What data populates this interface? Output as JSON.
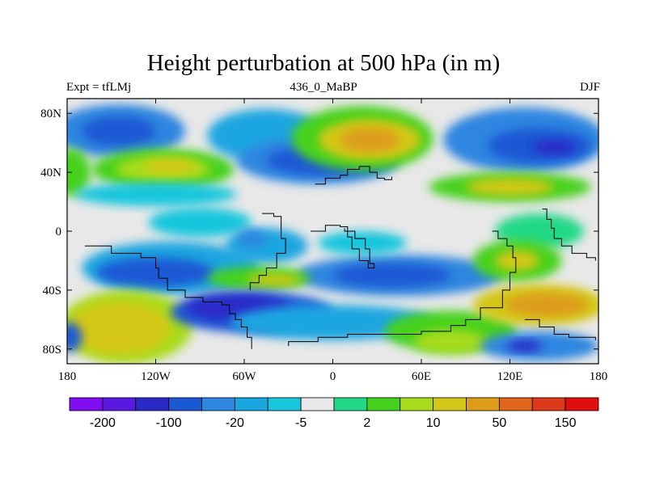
{
  "title": "Height perturbation at 500 hPa (in m)",
  "subtitle_left": "Expt = tfLMj",
  "subtitle_center": "436_0_MaBP",
  "subtitle_right": "DJF",
  "axes": {
    "lon_ticks": [
      {
        "value": -180,
        "label": "180"
      },
      {
        "value": -120,
        "label": "120W"
      },
      {
        "value": -60,
        "label": "60W"
      },
      {
        "value": 0,
        "label": "0"
      },
      {
        "value": 60,
        "label": "60E"
      },
      {
        "value": 120,
        "label": "120E"
      },
      {
        "value": 180,
        "label": "180"
      }
    ],
    "lat_ticks": [
      {
        "value": 80,
        "label": "80N"
      },
      {
        "value": 40,
        "label": "40N"
      },
      {
        "value": 0,
        "label": "0"
      },
      {
        "value": -40,
        "label": "40S"
      },
      {
        "value": -80,
        "label": "80S"
      }
    ],
    "lon_range": [
      -180,
      180
    ],
    "lat_range": [
      -90,
      90
    ]
  },
  "colorbar": {
    "colors": [
      "#7f0ff0",
      "#5a19e0",
      "#2a2ac8",
      "#1b58d4",
      "#2d86e0",
      "#1aa6e0",
      "#18c6dd",
      "#e8e8e8",
      "#20d888",
      "#46d11e",
      "#a9dc1a",
      "#d4c718",
      "#dd9c1a",
      "#e0661c",
      "#dd3a1a",
      "#e00f0f"
    ],
    "labels": [
      {
        "boundary": 1,
        "text": "-200"
      },
      {
        "boundary": 3,
        "text": "-100"
      },
      {
        "boundary": 5,
        "text": "-20"
      },
      {
        "boundary": 7,
        "text": "-5"
      },
      {
        "boundary": 9,
        "text": "2"
      },
      {
        "boundary": 11,
        "text": "10"
      },
      {
        "boundary": 13,
        "text": "50"
      },
      {
        "boundary": 15,
        "text": "150"
      }
    ]
  },
  "field": {
    "background": "#e8e8e8",
    "blobs": [
      {
        "lon": -145,
        "lat": 68,
        "rlon": 45,
        "rlat": 18,
        "color": "#2d86e0"
      },
      {
        "lon": -145,
        "lat": 68,
        "rlon": 25,
        "rlat": 10,
        "color": "#1b58d4"
      },
      {
        "lon": -115,
        "lat": 42,
        "rlon": 48,
        "rlat": 14,
        "color": "#46d11e"
      },
      {
        "lon": -115,
        "lat": 42,
        "rlon": 32,
        "rlat": 9,
        "color": "#a9dc1a"
      },
      {
        "lon": -110,
        "lat": 44,
        "rlon": 18,
        "rlat": 5,
        "color": "#d4c718"
      },
      {
        "lon": -178,
        "lat": 40,
        "rlon": 14,
        "rlat": 16,
        "color": "#46d11e"
      },
      {
        "lon": -45,
        "lat": 65,
        "rlon": 40,
        "rlat": 18,
        "color": "#1aa6e0"
      },
      {
        "lon": -10,
        "lat": 48,
        "rlon": 55,
        "rlat": 16,
        "color": "#2d86e0"
      },
      {
        "lon": -5,
        "lat": 48,
        "rlon": 40,
        "rlat": 10,
        "color": "#1b58d4"
      },
      {
        "lon": 20,
        "lat": 63,
        "rlon": 48,
        "rlat": 22,
        "color": "#46d11e"
      },
      {
        "lon": 25,
        "lat": 62,
        "rlon": 35,
        "rlat": 14,
        "color": "#d4c718"
      },
      {
        "lon": 25,
        "lat": 62,
        "rlon": 20,
        "rlat": 8,
        "color": "#dd9c1a"
      },
      {
        "lon": 130,
        "lat": 62,
        "rlon": 55,
        "rlat": 22,
        "color": "#2d86e0"
      },
      {
        "lon": 140,
        "lat": 58,
        "rlon": 35,
        "rlat": 12,
        "color": "#1b58d4"
      },
      {
        "lon": 150,
        "lat": 57,
        "rlon": 15,
        "rlat": 5,
        "color": "#2a2ac8"
      },
      {
        "lon": 120,
        "lat": 30,
        "rlon": 55,
        "rlat": 10,
        "color": "#46d11e"
      },
      {
        "lon": 120,
        "lat": 30,
        "rlon": 30,
        "rlat": 6,
        "color": "#d4c718"
      },
      {
        "lon": -120,
        "lat": 25,
        "rlon": 55,
        "rlat": 8,
        "color": "#18c6dd"
      },
      {
        "lon": -90,
        "lat": 6,
        "rlon": 35,
        "rlat": 10,
        "color": "#18c6dd"
      },
      {
        "lon": -110,
        "lat": -25,
        "rlon": 60,
        "rlat": 18,
        "color": "#1aa6e0"
      },
      {
        "lon": -120,
        "lat": -28,
        "rlon": 40,
        "rlat": 10,
        "color": "#1b58d4"
      },
      {
        "lon": -45,
        "lat": -10,
        "rlon": 28,
        "rlat": 12,
        "color": "#1aa6e0"
      },
      {
        "lon": -55,
        "lat": -5,
        "rlon": 10,
        "rlat": 6,
        "color": "#2d86e0"
      },
      {
        "lon": 45,
        "lat": -30,
        "rlon": 70,
        "rlat": 14,
        "color": "#2d86e0"
      },
      {
        "lon": 40,
        "lat": -30,
        "rlon": 40,
        "rlat": 8,
        "color": "#1b58d4"
      },
      {
        "lon": 20,
        "lat": -8,
        "rlon": 30,
        "rlat": 8,
        "color": "#18c6dd"
      },
      {
        "lon": -50,
        "lat": -32,
        "rlon": 35,
        "rlat": 8,
        "color": "#46d11e"
      },
      {
        "lon": -40,
        "lat": -33,
        "rlon": 18,
        "rlat": 4,
        "color": "#d4c718"
      },
      {
        "lon": 140,
        "lat": 0,
        "rlon": 30,
        "rlat": 12,
        "color": "#20d888"
      },
      {
        "lon": 125,
        "lat": -20,
        "rlon": 30,
        "rlat": 14,
        "color": "#46d11e"
      },
      {
        "lon": 125,
        "lat": -20,
        "rlon": 15,
        "rlat": 7,
        "color": "#d4c718"
      },
      {
        "lon": -140,
        "lat": -65,
        "rlon": 45,
        "rlat": 25,
        "color": "#a9dc1a"
      },
      {
        "lon": -145,
        "lat": -66,
        "rlon": 35,
        "rlat": 18,
        "color": "#d4c718"
      },
      {
        "lon": -55,
        "lat": -55,
        "rlon": 55,
        "rlat": 14,
        "color": "#1b58d4"
      },
      {
        "lon": -65,
        "lat": -52,
        "rlon": 35,
        "rlat": 9,
        "color": "#2a2ac8"
      },
      {
        "lon": 0,
        "lat": -62,
        "rlon": 70,
        "rlat": 12,
        "color": "#1aa6e0"
      },
      {
        "lon": 80,
        "lat": -68,
        "rlon": 45,
        "rlat": 14,
        "color": "#46d11e"
      },
      {
        "lon": 80,
        "lat": -75,
        "rlon": 25,
        "rlat": 8,
        "color": "#a9dc1a"
      },
      {
        "lon": 140,
        "lat": -50,
        "rlon": 45,
        "rlat": 14,
        "color": "#d4c718"
      },
      {
        "lon": 145,
        "lat": -50,
        "rlon": 28,
        "rlat": 8,
        "color": "#dd9c1a"
      },
      {
        "lon": 140,
        "lat": -78,
        "rlon": 40,
        "rlat": 10,
        "color": "#2d86e0"
      },
      {
        "lon": 130,
        "lat": -78,
        "rlon": 12,
        "rlat": 4,
        "color": "#2a2ac8"
      },
      {
        "lon": -178,
        "lat": -72,
        "rlon": 8,
        "rlat": 10,
        "color": "#1b58d4"
      }
    ]
  },
  "coastlines": [
    {
      "name": "north-america-outline",
      "lonlat": [
        [
          -168,
          -10
        ],
        [
          -150,
          -15
        ],
        [
          -130,
          -18
        ],
        [
          -120,
          -25
        ],
        [
          -118,
          -32
        ],
        [
          -112,
          -40
        ],
        [
          -100,
          -45
        ],
        [
          -88,
          -48
        ],
        [
          -75,
          -50
        ],
        [
          -70,
          -56
        ],
        [
          -66,
          -60
        ],
        [
          -62,
          -65
        ],
        [
          -58,
          -72
        ],
        [
          -55,
          -80
        ]
      ]
    },
    {
      "name": "south-america-outline",
      "lonlat": [
        [
          -48,
          12
        ],
        [
          -40,
          10
        ],
        [
          -35,
          -5
        ],
        [
          -32,
          -15
        ],
        [
          -38,
          -25
        ],
        [
          -45,
          -30
        ],
        [
          -50,
          -35
        ],
        [
          -56,
          -40
        ]
      ]
    },
    {
      "name": "africa-outline",
      "lonlat": [
        [
          -15,
          0
        ],
        [
          -5,
          4
        ],
        [
          5,
          3
        ],
        [
          10,
          -4
        ],
        [
          13,
          -12
        ],
        [
          18,
          -20
        ],
        [
          24,
          -25
        ],
        [
          28,
          -22
        ],
        [
          25,
          -12
        ],
        [
          22,
          -5
        ],
        [
          15,
          0
        ],
        [
          8,
          2
        ]
      ]
    },
    {
      "name": "eurasia-outline",
      "lonlat": [
        [
          -12,
          32
        ],
        [
          -5,
          36
        ],
        [
          5,
          38
        ],
        [
          10,
          42
        ],
        [
          18,
          44
        ],
        [
          25,
          40
        ],
        [
          30,
          36
        ],
        [
          35,
          35
        ],
        [
          40,
          37
        ]
      ]
    },
    {
      "name": "asia-australia-outline",
      "lonlat": [
        [
          108,
          0
        ],
        [
          112,
          -5
        ],
        [
          118,
          -10
        ],
        [
          122,
          -18
        ],
        [
          124,
          -28
        ],
        [
          120,
          -40
        ],
        [
          115,
          -52
        ],
        [
          100,
          -60
        ],
        [
          90,
          -64
        ],
        [
          80,
          -68
        ],
        [
          60,
          -70
        ],
        [
          40,
          -70
        ],
        [
          10,
          -72
        ],
        [
          -10,
          -75
        ],
        [
          -30,
          -78
        ]
      ]
    },
    {
      "name": "pacific-islands-outline",
      "lonlat": [
        [
          142,
          15
        ],
        [
          145,
          8
        ],
        [
          148,
          2
        ],
        [
          150,
          -5
        ],
        [
          155,
          -10
        ],
        [
          162,
          -15
        ],
        [
          172,
          -18
        ],
        [
          178,
          -20
        ]
      ]
    },
    {
      "name": "antarctic-shelf-outline",
      "lonlat": [
        [
          130,
          -60
        ],
        [
          140,
          -65
        ],
        [
          150,
          -70
        ],
        [
          160,
          -72
        ],
        [
          178,
          -74
        ]
      ]
    }
  ]
}
